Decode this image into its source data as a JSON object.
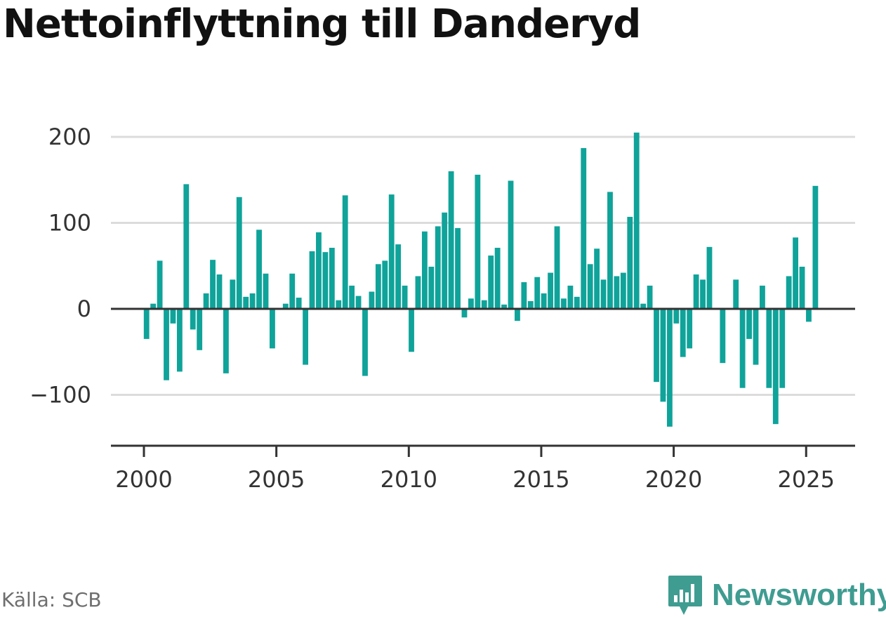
{
  "title": "Nettoinflyttning till Danderyd",
  "source": "Källa: SCB",
  "brand": {
    "name": "Newsworthy",
    "color": "#3f9c91",
    "icon": "chart-bubble-icon"
  },
  "colors": {
    "bar": "#0fa39a",
    "grid": "#dcdcdc",
    "axis": "#333333"
  },
  "chart_data": {
    "type": "bar",
    "xlabel": "",
    "ylabel": "",
    "ylim": [
      -155,
      215
    ],
    "xlim": [
      1998.75,
      2026.85
    ],
    "grid": true,
    "y_ticks": [
      -100,
      0,
      100,
      200
    ],
    "y_tick_labels": [
      "−100",
      "0",
      "100",
      "200"
    ],
    "x_ticks": [
      2000,
      2005,
      2010,
      2015,
      2020,
      2025
    ],
    "x_tick_labels": [
      "2000",
      "2005",
      "2010",
      "2015",
      "2020",
      "2025"
    ],
    "start_year": 2000,
    "periods_per_year": 4,
    "values": [
      -35,
      6,
      56,
      -83,
      -17,
      -73,
      145,
      -24,
      -48,
      18,
      57,
      40,
      -75,
      34,
      130,
      14,
      18,
      92,
      41,
      -46,
      0,
      6,
      41,
      13,
      -65,
      67,
      89,
      66,
      71,
      10,
      132,
      27,
      15,
      -78,
      20,
      52,
      56,
      133,
      75,
      27,
      -50,
      38,
      90,
      49,
      96,
      112,
      160,
      94,
      -10,
      12,
      156,
      10,
      62,
      71,
      5,
      149,
      -14,
      31,
      9,
      37,
      18,
      42,
      96,
      12,
      27,
      14,
      187,
      52,
      70,
      34,
      136,
      38,
      42,
      107,
      205,
      6,
      27,
      -85,
      -108,
      -137,
      -17,
      -56,
      -46,
      40,
      34,
      72,
      0,
      -63,
      0,
      34,
      -92,
      -35,
      -65,
      27,
      -92,
      -134,
      -92,
      38,
      83,
      49,
      -15,
      143
    ]
  }
}
